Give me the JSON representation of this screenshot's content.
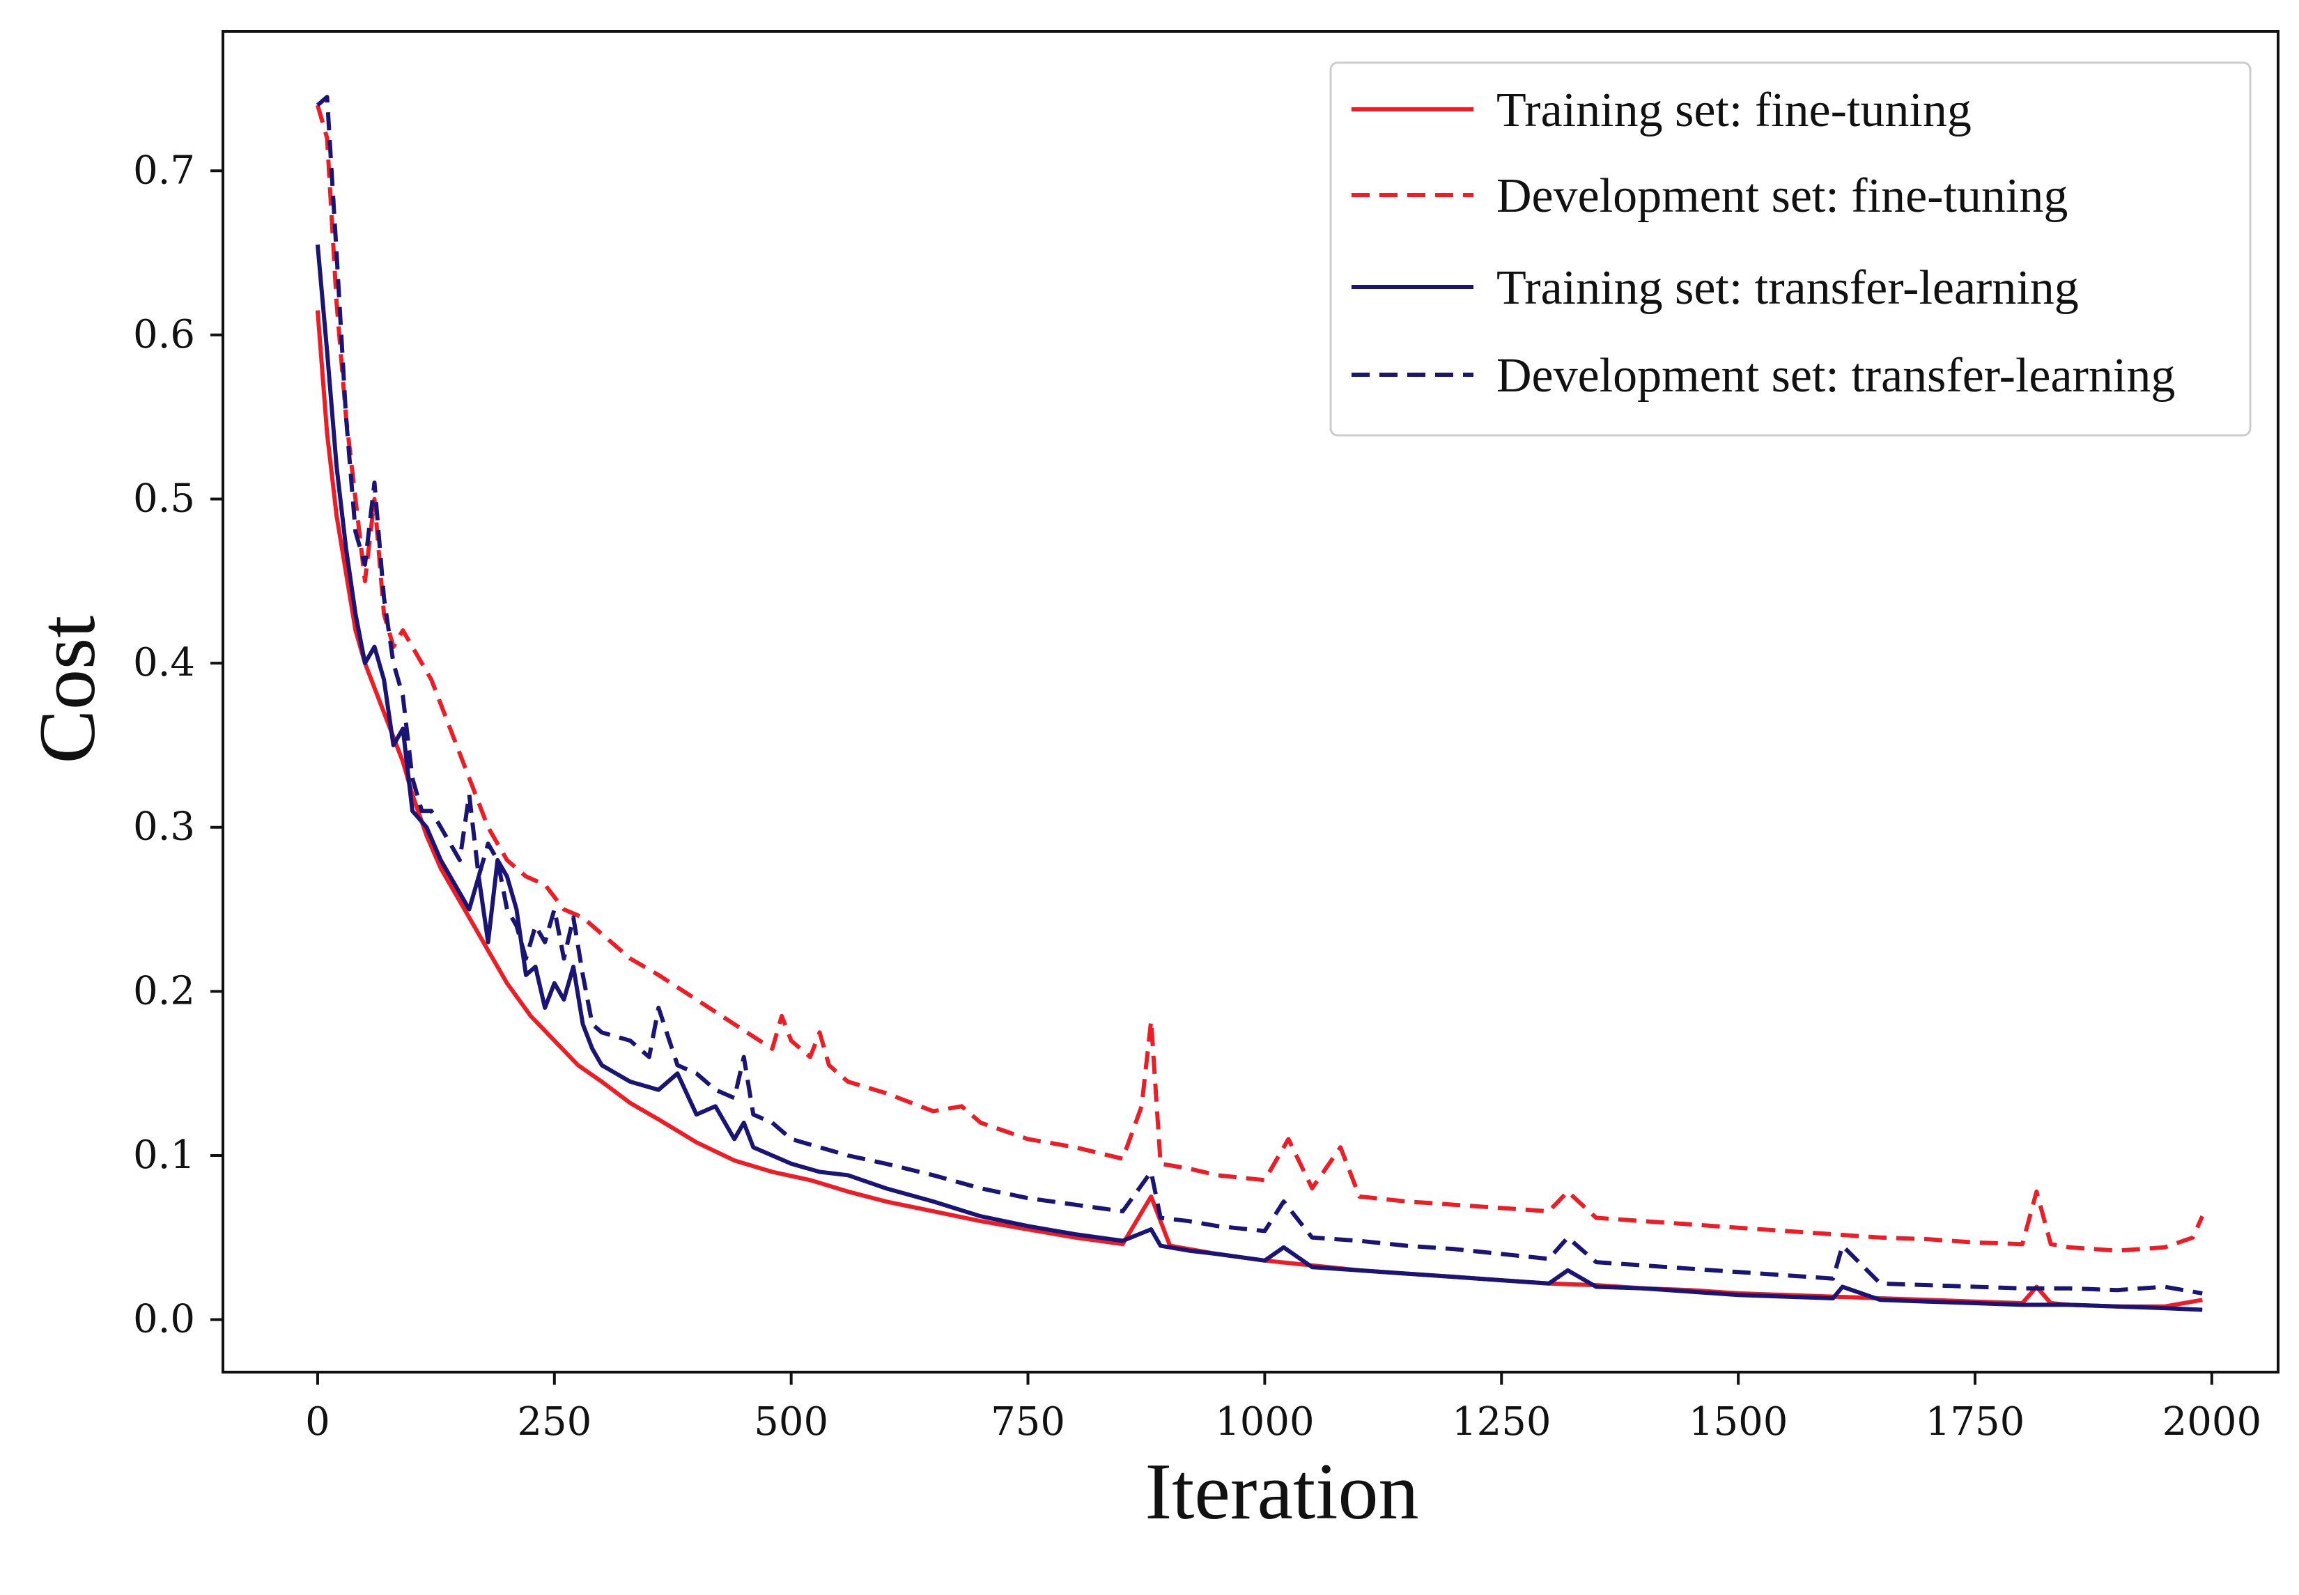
{
  "chart_data": {
    "type": "line",
    "title": "",
    "xlabel": "Iteration",
    "ylabel": "Cost",
    "xlim": [
      -100,
      2070
    ],
    "ylim": [
      -0.032,
      0.785
    ],
    "xticks": [
      0,
      250,
      500,
      750,
      1000,
      1250,
      1500,
      1750,
      2000
    ],
    "yticks": [
      0.0,
      0.1,
      0.2,
      0.3,
      0.4,
      0.5,
      0.6,
      0.7
    ],
    "xtick_labels": [
      "0",
      "250",
      "500",
      "750",
      "1000",
      "1250",
      "1500",
      "1750",
      "2000"
    ],
    "ytick_labels": [
      "0.0",
      "0.1",
      "0.2",
      "0.3",
      "0.4",
      "0.5",
      "0.6",
      "0.7"
    ],
    "grid": false,
    "legend_position": "top-right",
    "series": [
      {
        "name": "Training set: fine-tuning",
        "color": "#ee1c25",
        "dash": "solid",
        "x": [
          0,
          10,
          20,
          30,
          40,
          50,
          60,
          70,
          80,
          90,
          100,
          115,
          130,
          145,
          160,
          180,
          200,
          225,
          250,
          275,
          300,
          330,
          360,
          400,
          440,
          480,
          520,
          560,
          600,
          650,
          700,
          750,
          800,
          850,
          880,
          900,
          950,
          1000,
          1050,
          1100,
          1150,
          1200,
          1250,
          1300,
          1350,
          1400,
          1450,
          1500,
          1550,
          1600,
          1650,
          1700,
          1750,
          1800,
          1815,
          1830,
          1850,
          1900,
          1950,
          1990
        ],
        "y": [
          0.615,
          0.54,
          0.49,
          0.455,
          0.42,
          0.4,
          0.385,
          0.37,
          0.355,
          0.34,
          0.32,
          0.295,
          0.275,
          0.26,
          0.245,
          0.225,
          0.205,
          0.185,
          0.17,
          0.155,
          0.145,
          0.132,
          0.122,
          0.108,
          0.097,
          0.09,
          0.085,
          0.078,
          0.072,
          0.066,
          0.06,
          0.055,
          0.05,
          0.046,
          0.075,
          0.045,
          0.04,
          0.036,
          0.033,
          0.03,
          0.028,
          0.026,
          0.024,
          0.022,
          0.021,
          0.019,
          0.018,
          0.016,
          0.015,
          0.014,
          0.013,
          0.012,
          0.011,
          0.01,
          0.02,
          0.01,
          0.009,
          0.008,
          0.008,
          0.012
        ]
      },
      {
        "name": "Development set: fine-tuning",
        "color": "#ee1c25",
        "dash": "dashed",
        "x": [
          0,
          10,
          20,
          30,
          40,
          50,
          60,
          70,
          80,
          90,
          100,
          120,
          140,
          160,
          180,
          200,
          220,
          240,
          260,
          280,
          300,
          330,
          360,
          400,
          440,
          480,
          490,
          500,
          520,
          530,
          540,
          560,
          600,
          650,
          680,
          700,
          750,
          800,
          850,
          870,
          880,
          890,
          920,
          950,
          1000,
          1025,
          1050,
          1080,
          1100,
          1150,
          1200,
          1250,
          1300,
          1320,
          1350,
          1400,
          1450,
          1500,
          1550,
          1600,
          1650,
          1700,
          1750,
          1800,
          1815,
          1830,
          1850,
          1900,
          1950,
          1980,
          1990
        ],
        "y": [
          0.74,
          0.72,
          0.62,
          0.55,
          0.5,
          0.45,
          0.5,
          0.43,
          0.41,
          0.42,
          0.41,
          0.39,
          0.36,
          0.33,
          0.3,
          0.28,
          0.27,
          0.265,
          0.25,
          0.245,
          0.235,
          0.22,
          0.21,
          0.195,
          0.18,
          0.165,
          0.185,
          0.17,
          0.16,
          0.175,
          0.155,
          0.145,
          0.138,
          0.127,
          0.13,
          0.12,
          0.11,
          0.105,
          0.098,
          0.13,
          0.182,
          0.095,
          0.092,
          0.088,
          0.085,
          0.11,
          0.08,
          0.105,
          0.075,
          0.072,
          0.07,
          0.068,
          0.066,
          0.078,
          0.062,
          0.06,
          0.058,
          0.056,
          0.054,
          0.052,
          0.05,
          0.049,
          0.047,
          0.046,
          0.078,
          0.046,
          0.044,
          0.042,
          0.044,
          0.05,
          0.063
        ]
      },
      {
        "name": "Training set: transfer-learning",
        "color": "#1a1475",
        "dash": "solid",
        "x": [
          0,
          10,
          20,
          30,
          40,
          50,
          60,
          70,
          80,
          90,
          100,
          115,
          130,
          145,
          160,
          170,
          180,
          190,
          200,
          210,
          220,
          230,
          240,
          250,
          260,
          270,
          280,
          290,
          300,
          330,
          360,
          380,
          400,
          420,
          440,
          450,
          460,
          480,
          500,
          530,
          560,
          600,
          650,
          700,
          750,
          800,
          850,
          880,
          890,
          920,
          950,
          1000,
          1020,
          1050,
          1100,
          1150,
          1200,
          1250,
          1300,
          1320,
          1350,
          1400,
          1450,
          1500,
          1550,
          1600,
          1610,
          1650,
          1700,
          1750,
          1800,
          1850,
          1900,
          1950,
          1990
        ],
        "y": [
          0.655,
          0.59,
          0.52,
          0.47,
          0.43,
          0.4,
          0.41,
          0.39,
          0.35,
          0.36,
          0.31,
          0.3,
          0.28,
          0.265,
          0.25,
          0.27,
          0.23,
          0.28,
          0.27,
          0.25,
          0.21,
          0.215,
          0.19,
          0.205,
          0.195,
          0.215,
          0.18,
          0.165,
          0.155,
          0.145,
          0.14,
          0.15,
          0.125,
          0.13,
          0.11,
          0.12,
          0.105,
          0.1,
          0.095,
          0.09,
          0.088,
          0.08,
          0.072,
          0.063,
          0.057,
          0.052,
          0.048,
          0.055,
          0.045,
          0.042,
          0.04,
          0.036,
          0.044,
          0.032,
          0.03,
          0.028,
          0.026,
          0.024,
          0.022,
          0.03,
          0.02,
          0.019,
          0.017,
          0.015,
          0.014,
          0.013,
          0.02,
          0.012,
          0.011,
          0.01,
          0.009,
          0.009,
          0.008,
          0.007,
          0.006
        ]
      },
      {
        "name": "Development set: transfer-learning",
        "color": "#1a1475",
        "dash": "dashed",
        "x": [
          0,
          10,
          20,
          30,
          40,
          50,
          60,
          70,
          80,
          90,
          100,
          110,
          120,
          130,
          140,
          150,
          160,
          170,
          180,
          190,
          200,
          210,
          220,
          230,
          240,
          250,
          260,
          270,
          280,
          290,
          300,
          330,
          350,
          360,
          380,
          400,
          420,
          440,
          450,
          460,
          480,
          500,
          530,
          560,
          600,
          650,
          700,
          750,
          800,
          850,
          880,
          890,
          920,
          950,
          1000,
          1020,
          1050,
          1100,
          1150,
          1200,
          1250,
          1300,
          1320,
          1350,
          1400,
          1450,
          1500,
          1550,
          1600,
          1610,
          1650,
          1700,
          1750,
          1800,
          1850,
          1900,
          1950,
          1990
        ],
        "y": [
          0.74,
          0.745,
          0.65,
          0.55,
          0.48,
          0.46,
          0.51,
          0.44,
          0.4,
          0.38,
          0.33,
          0.31,
          0.31,
          0.3,
          0.29,
          0.28,
          0.32,
          0.27,
          0.29,
          0.28,
          0.25,
          0.24,
          0.22,
          0.24,
          0.23,
          0.25,
          0.22,
          0.245,
          0.21,
          0.18,
          0.175,
          0.17,
          0.16,
          0.19,
          0.155,
          0.15,
          0.14,
          0.135,
          0.16,
          0.125,
          0.12,
          0.11,
          0.105,
          0.1,
          0.095,
          0.088,
          0.08,
          0.074,
          0.07,
          0.066,
          0.09,
          0.062,
          0.06,
          0.057,
          0.054,
          0.072,
          0.05,
          0.048,
          0.045,
          0.043,
          0.04,
          0.037,
          0.05,
          0.035,
          0.033,
          0.031,
          0.029,
          0.027,
          0.025,
          0.045,
          0.022,
          0.021,
          0.02,
          0.019,
          0.019,
          0.018,
          0.02,
          0.016
        ]
      }
    ]
  }
}
